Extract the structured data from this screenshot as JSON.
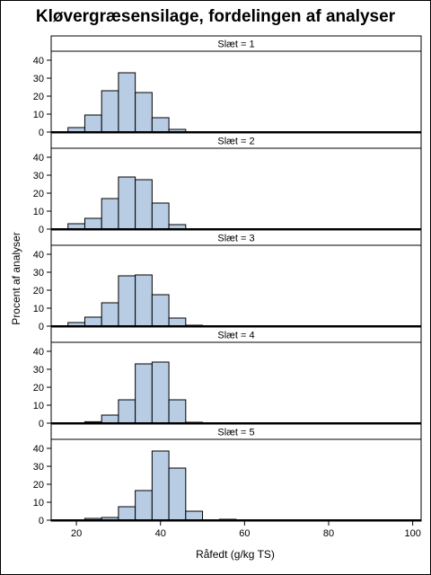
{
  "chart_data": {
    "type": "bar",
    "title": "Kløvergræsensilage, fordelingen af analyser",
    "xlabel": "Råfedt (g/kg TS)",
    "ylabel": "Procent af analyser",
    "xlim": [
      14,
      102
    ],
    "ylim": [
      0,
      45
    ],
    "xticks": [
      20,
      40,
      60,
      80,
      100
    ],
    "yticks": [
      0,
      10,
      20,
      30,
      40
    ],
    "bin_width": 4,
    "bar_color": "#b8cce4",
    "panels": [
      {
        "label": "Slæt = 1",
        "bins": [
          [
            18,
            2.5
          ],
          [
            22,
            9.5
          ],
          [
            26,
            23
          ],
          [
            30,
            33
          ],
          [
            34,
            22
          ],
          [
            38,
            8
          ],
          [
            42,
            1.5
          ]
        ]
      },
      {
        "label": "Slæt = 2",
        "bins": [
          [
            18,
            3
          ],
          [
            22,
            6
          ],
          [
            26,
            17
          ],
          [
            30,
            29
          ],
          [
            34,
            27.5
          ],
          [
            38,
            14.5
          ],
          [
            42,
            2.5
          ]
        ]
      },
      {
        "label": "Slæt = 3",
        "bins": [
          [
            18,
            2
          ],
          [
            22,
            5
          ],
          [
            26,
            13
          ],
          [
            30,
            28
          ],
          [
            34,
            28.5
          ],
          [
            38,
            17.5
          ],
          [
            42,
            4.5
          ],
          [
            46,
            0.5
          ]
        ]
      },
      {
        "label": "Slæt = 4",
        "bins": [
          [
            22,
            0.8
          ],
          [
            26,
            4.5
          ],
          [
            30,
            13
          ],
          [
            34,
            33
          ],
          [
            38,
            34
          ],
          [
            42,
            13
          ],
          [
            46,
            0.5
          ]
        ]
      },
      {
        "label": "Slæt = 5",
        "bins": [
          [
            22,
            1
          ],
          [
            26,
            1.5
          ],
          [
            30,
            7.5
          ],
          [
            34,
            16.5
          ],
          [
            38,
            38.5
          ],
          [
            42,
            29
          ],
          [
            46,
            5
          ],
          [
            54,
            0.5
          ]
        ]
      }
    ]
  }
}
